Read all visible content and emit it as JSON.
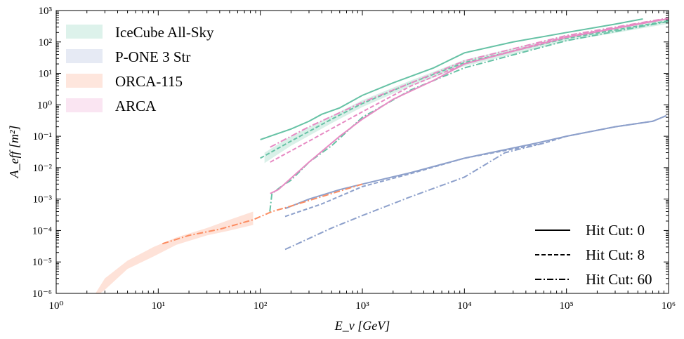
{
  "chart_data": {
    "type": "line",
    "xlabel": "E_ν [GeV]",
    "ylabel": "A_eff [m²]",
    "xscale": "log",
    "yscale": "log",
    "xlim": [
      1,
      1000000
    ],
    "ylim": [
      1e-06,
      1000
    ],
    "x_tick_labels": [
      "10⁰",
      "10¹",
      "10²",
      "10³",
      "10⁴",
      "10⁵",
      "10⁶"
    ],
    "y_tick_labels": [
      "10⁻⁶",
      "10⁻⁵",
      "10⁻⁴",
      "10⁻³",
      "10⁻²",
      "10⁻¹",
      "10⁰",
      "10¹",
      "10²",
      "10³"
    ],
    "grid": false,
    "detector_legend": {
      "placement": "top-left",
      "entries": [
        {
          "name": "IceCube All-Sky",
          "color": "#66c2a5"
        },
        {
          "name": "P-ONE 3 Str",
          "color": "#8da0cb"
        },
        {
          "name": "ORCA-115",
          "color": "#fc8d62"
        },
        {
          "name": "ARCA",
          "color": "#e78ac3"
        }
      ]
    },
    "style_legend": {
      "placement": "bottom-right",
      "entries": [
        {
          "name": "Hit Cut: 0",
          "dash": "solid"
        },
        {
          "name": "Hit Cut: 8",
          "dash": "dashed"
        },
        {
          "name": "Hit Cut: 60",
          "dash": "dashdot"
        }
      ]
    },
    "bands": [
      {
        "detector": "IceCube All-Sky",
        "color": "#66c2a5",
        "x": [
          110,
          200,
          500,
          1000,
          3000,
          10000,
          100000,
          1000000
        ],
        "lower": [
          0.014,
          0.05,
          0.26,
          0.85,
          4,
          17,
          105,
          380
        ],
        "upper": [
          0.03,
          0.1,
          0.45,
          1.4,
          6,
          27,
          160,
          560
        ]
      },
      {
        "detector": "ORCA-115",
        "color": "#fc8d62",
        "x": [
          2.2,
          3,
          5,
          9,
          15,
          30,
          50,
          85
        ],
        "lower": [
          6e-07,
          1.3e-06,
          6e-06,
          1.5e-05,
          3.5e-05,
          7e-05,
          0.0001,
          0.00015
        ],
        "upper": [
          6e-07,
          3e-06,
          1.1e-05,
          3e-05,
          6e-05,
          0.00012,
          0.00022,
          0.0004
        ]
      }
    ],
    "series": [
      {
        "detector": "IceCube All-Sky",
        "hit_cut": 0,
        "color": "#66c2a5",
        "dash": "solid",
        "x": [
          100,
          200,
          300,
          400,
          600,
          1000,
          2000,
          5000,
          10000,
          30000,
          100000,
          300000,
          560000
        ],
        "y": [
          0.078,
          0.17,
          0.3,
          0.5,
          0.8,
          2,
          5,
          15,
          45,
          100,
          200,
          370,
          540
        ]
      },
      {
        "detector": "IceCube All-Sky",
        "hit_cut": 8,
        "color": "#66c2a5",
        "dash": "dashed",
        "x": [
          100,
          200,
          500,
          1000,
          3000,
          10000,
          100000,
          1000000
        ],
        "y": [
          0.02,
          0.07,
          0.35,
          1.1,
          5,
          22,
          130,
          470
        ]
      },
      {
        "detector": "IceCube All-Sky",
        "hit_cut": 60,
        "color": "#66c2a5",
        "dash": "dashdot",
        "x": [
          124,
          130,
          160,
          200,
          300,
          500,
          1000,
          3000,
          10000,
          100000,
          1000000
        ],
        "y": [
          0.0004,
          0.0015,
          0.0025,
          0.004,
          0.015,
          0.05,
          0.4,
          3,
          15,
          110,
          450
        ]
      },
      {
        "detector": "P-ONE 3 Str",
        "hit_cut": 0,
        "color": "#8da0cb",
        "dash": "solid",
        "x": [
          175,
          300,
          600,
          1000,
          3000,
          10000,
          50000,
          100000,
          300000,
          700000,
          950000
        ],
        "y": [
          0.0005,
          0.001,
          0.002,
          0.003,
          0.007,
          0.02,
          0.06,
          0.1,
          0.2,
          0.3,
          0.45
        ]
      },
      {
        "detector": "P-ONE 3 Str",
        "hit_cut": 8,
        "color": "#8da0cb",
        "dash": "dashed",
        "x": [
          175,
          400,
          1000,
          3000,
          10000,
          60000,
          100000,
          300000,
          700000,
          950000
        ],
        "y": [
          0.00028,
          0.0007,
          0.0025,
          0.0065,
          0.02,
          0.06,
          0.1,
          0.2,
          0.3,
          0.45
        ]
      },
      {
        "detector": "P-ONE 3 Str",
        "hit_cut": 60,
        "color": "#8da0cb",
        "dash": "dashdot",
        "x": [
          175,
          500,
          1000,
          3000,
          10000,
          25000,
          60000
        ],
        "y": [
          2.5e-05,
          0.00012,
          0.0003,
          0.0012,
          0.005,
          0.03,
          0.06
        ]
      },
      {
        "detector": "ORCA-115",
        "hit_cut": 60,
        "color": "#fc8d62",
        "dash": "dashdot",
        "x": [
          11,
          20,
          40,
          85,
          130,
          200,
          400,
          1000
        ],
        "y": [
          3.8e-05,
          7e-05,
          0.00011,
          0.00022,
          0.0004,
          0.0006,
          0.0012,
          0.003
        ]
      },
      {
        "detector": "ARCA",
        "hit_cut": 0,
        "color": "#e78ac3",
        "dash": "solid",
        "x": [
          125,
          150,
          300,
          600,
          1000,
          2000,
          5000,
          10000,
          100000,
          1000000
        ],
        "y": [
          0.0015,
          0.002,
          0.015,
          0.1,
          0.35,
          1.5,
          6,
          20,
          140,
          550
        ]
      },
      {
        "detector": "ARCA",
        "hit_cut": 8,
        "color": "#e78ac3",
        "dash": "dashed",
        "x": [
          125,
          300,
          1000,
          3000,
          10000,
          100000,
          1000000
        ],
        "y": [
          0.015,
          0.07,
          0.6,
          4,
          20,
          150,
          560
        ]
      },
      {
        "detector": "ARCA",
        "hit_cut": 60,
        "color": "#e78ac3",
        "dash": "dashdot",
        "x": [
          125,
          300,
          1000,
          3000,
          10000,
          100000,
          1000000
        ],
        "y": [
          0.045,
          0.2,
          1.2,
          5,
          25,
          160,
          580
        ]
      }
    ]
  }
}
